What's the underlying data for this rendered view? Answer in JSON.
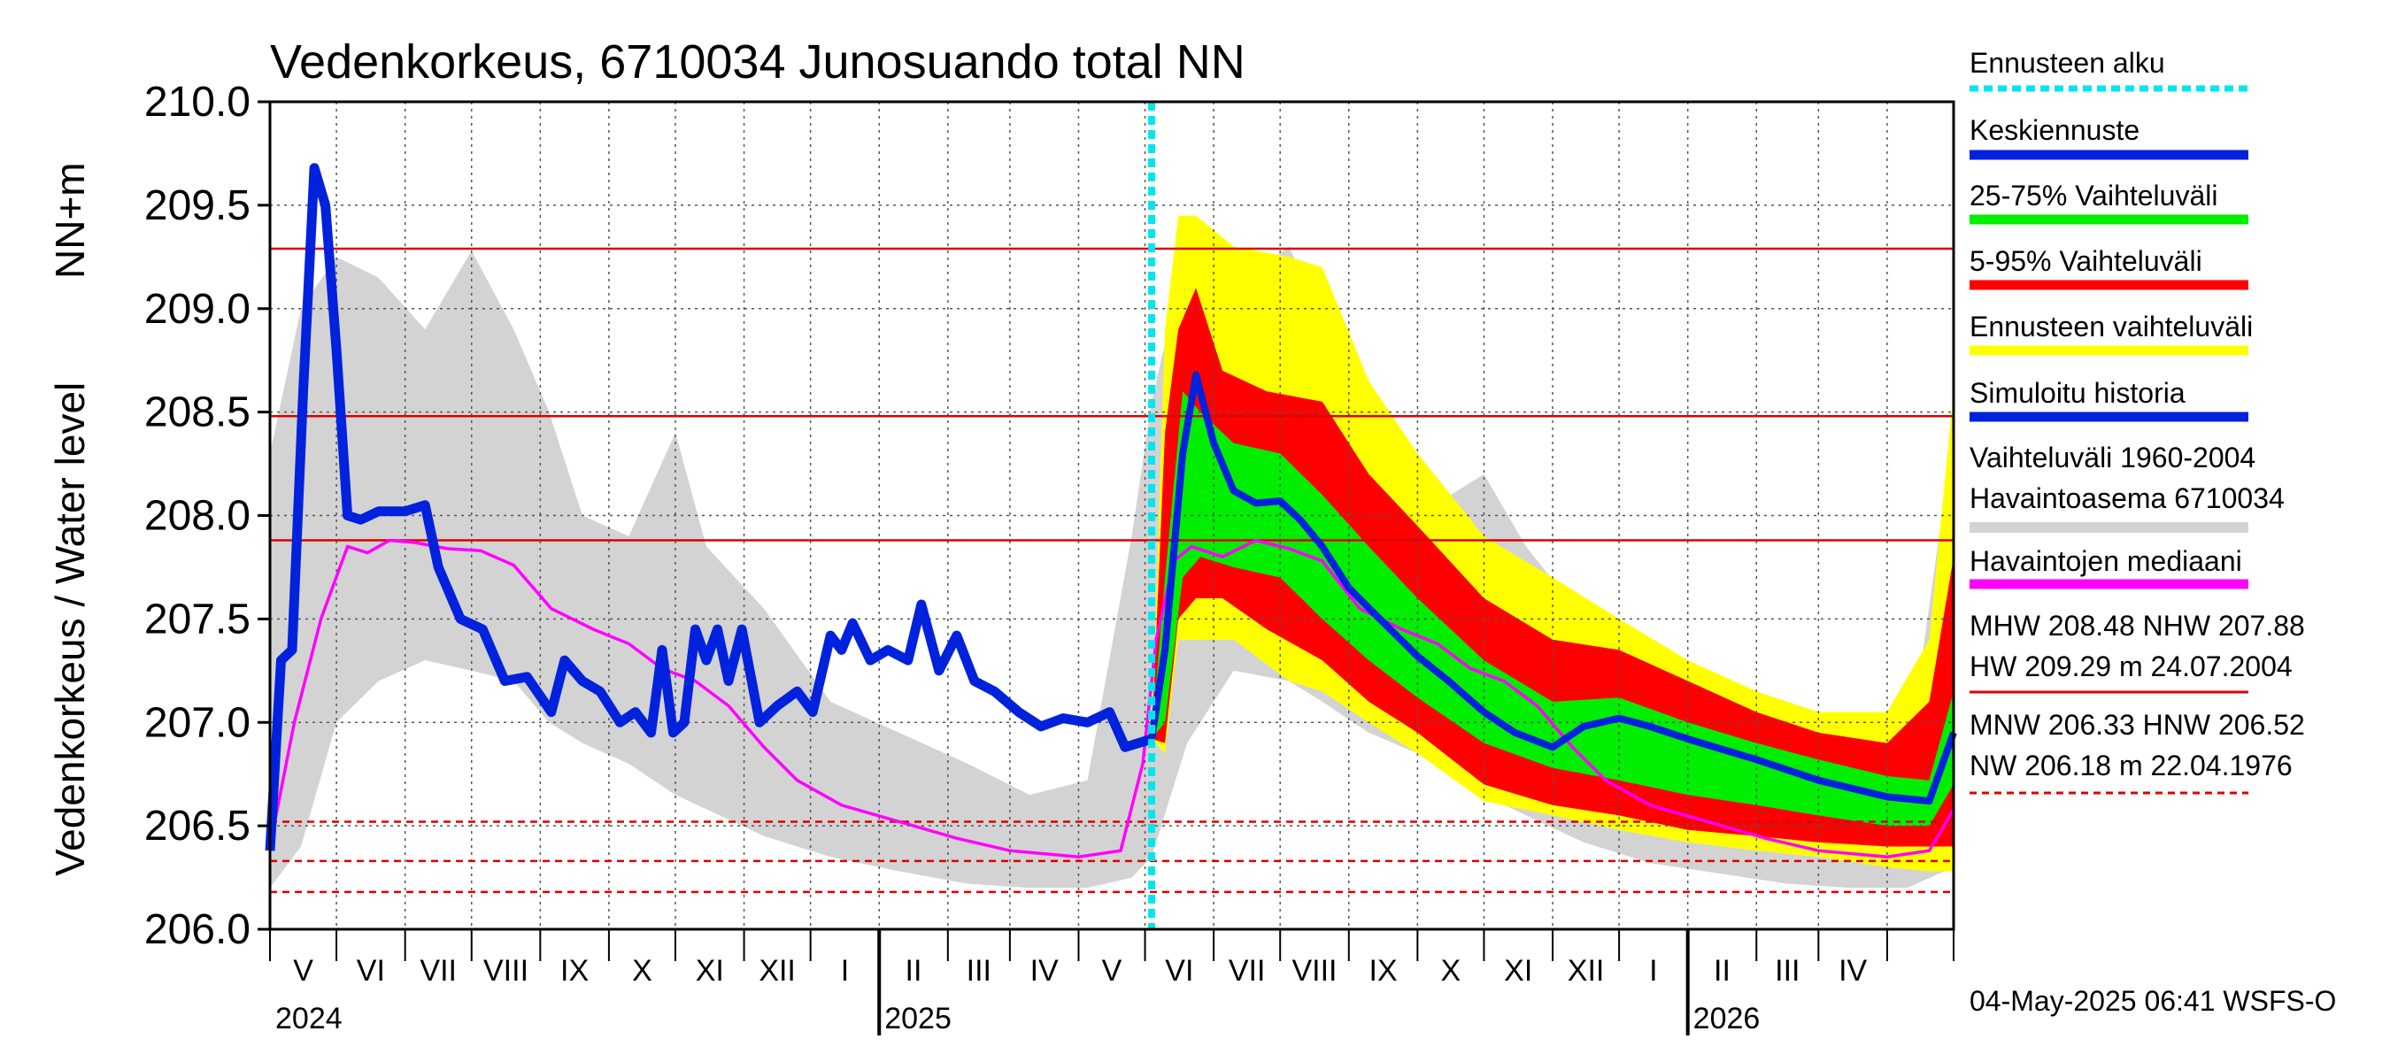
{
  "chart_data": {
    "type": "line",
    "title": "Vedenkorkeus, 6710034 Junosuando total NN",
    "ylabel": "Vedenkorkeus / Water level",
    "yunit": "NN+m",
    "ylim": [
      206.0,
      210.0
    ],
    "yticks": [
      "206.0",
      "206.5",
      "207.0",
      "207.5",
      "208.0",
      "208.5",
      "209.0",
      "209.5",
      "210.0"
    ],
    "xlim": [
      "2024-04-01",
      "2026-05-01"
    ],
    "grid": true,
    "months": [
      "V",
      "VI",
      "VII",
      "VIII",
      "IX",
      "X",
      "XI",
      "XII",
      "I",
      "II",
      "III",
      "IV",
      "V",
      "VI",
      "VII",
      "VIII",
      "IX",
      "X",
      "XI",
      "XII",
      "I",
      "II",
      "III",
      "IV"
    ],
    "years": [
      "2024",
      "2025",
      "2026"
    ],
    "forecast_start": "2025-05-04",
    "colors": {
      "forecast_start": "#00e5ee",
      "mean_forecast": "#0022dd",
      "p25_75": "#00ee00",
      "p5_95": "#ff0000",
      "forecast_range": "#ffff00",
      "simulated_history": "#0022dd",
      "historical_range": "#d3d3d3",
      "median": "#ff00ff",
      "reference": "#dd0000"
    },
    "reference_lines": [
      {
        "label": "HW",
        "value": 209.29,
        "style": "solid"
      },
      {
        "label": "MHW",
        "value": 208.48,
        "style": "solid"
      },
      {
        "label": "NHW",
        "value": 207.88,
        "style": "solid"
      },
      {
        "label": "HNW",
        "value": 206.52,
        "style": "dashed"
      },
      {
        "label": "MNW",
        "value": 206.33,
        "style": "dashed"
      },
      {
        "label": "NW",
        "value": 206.18,
        "style": "dashed"
      }
    ],
    "simulated_history": [
      [
        "2024-04-01",
        206.38
      ],
      [
        "2024-04-06",
        207.3
      ],
      [
        "2024-04-11",
        207.35
      ],
      [
        "2024-04-16",
        208.6
      ],
      [
        "2024-04-21",
        209.68
      ],
      [
        "2024-04-26",
        209.5
      ],
      [
        "2024-05-01",
        208.8
      ],
      [
        "2024-05-06",
        208.0
      ],
      [
        "2024-05-12",
        207.98
      ],
      [
        "2024-05-20",
        208.02
      ],
      [
        "2024-06-01",
        208.02
      ],
      [
        "2024-06-10",
        208.05
      ],
      [
        "2024-06-16",
        207.75
      ],
      [
        "2024-06-26",
        207.5
      ],
      [
        "2024-07-06",
        207.45
      ],
      [
        "2024-07-16",
        207.2
      ],
      [
        "2024-07-26",
        207.22
      ],
      [
        "2024-08-06",
        207.05
      ],
      [
        "2024-08-12",
        207.3
      ],
      [
        "2024-08-20",
        207.2
      ],
      [
        "2024-08-28",
        207.15
      ],
      [
        "2024-09-06",
        207.0
      ],
      [
        "2024-09-13",
        207.05
      ],
      [
        "2024-09-20",
        206.95
      ],
      [
        "2024-09-25",
        207.35
      ],
      [
        "2024-09-30",
        206.95
      ],
      [
        "2024-10-05",
        207.0
      ],
      [
        "2024-10-10",
        207.45
      ],
      [
        "2024-10-15",
        207.3
      ],
      [
        "2024-10-20",
        207.45
      ],
      [
        "2024-10-25",
        207.2
      ],
      [
        "2024-10-31",
        207.45
      ],
      [
        "2024-11-08",
        207.0
      ],
      [
        "2024-11-16",
        207.08
      ],
      [
        "2024-11-25",
        207.15
      ],
      [
        "2024-12-02",
        207.05
      ],
      [
        "2024-12-10",
        207.42
      ],
      [
        "2024-12-15",
        207.35
      ],
      [
        "2024-12-20",
        207.48
      ],
      [
        "2024-12-28",
        207.3
      ],
      [
        "2025-01-05",
        207.35
      ],
      [
        "2025-01-14",
        207.3
      ],
      [
        "2025-01-20",
        207.57
      ],
      [
        "2025-01-28",
        207.25
      ],
      [
        "2025-02-05",
        207.42
      ],
      [
        "2025-02-13",
        207.2
      ],
      [
        "2025-02-22",
        207.15
      ],
      [
        "2025-03-05",
        207.05
      ],
      [
        "2025-03-15",
        206.98
      ],
      [
        "2025-03-25",
        207.02
      ],
      [
        "2025-04-05",
        207.0
      ],
      [
        "2025-04-15",
        207.05
      ],
      [
        "2025-04-22",
        206.88
      ],
      [
        "2025-05-04",
        206.92
      ]
    ],
    "median": [
      [
        "2024-04-01",
        206.4
      ],
      [
        "2024-04-12",
        207.0
      ],
      [
        "2024-04-24",
        207.5
      ],
      [
        "2024-05-06",
        207.85
      ],
      [
        "2024-05-15",
        207.82
      ],
      [
        "2024-05-25",
        207.88
      ],
      [
        "2024-06-05",
        207.87
      ],
      [
        "2024-06-20",
        207.84
      ],
      [
        "2024-07-05",
        207.83
      ],
      [
        "2024-07-20",
        207.76
      ],
      [
        "2024-08-06",
        207.55
      ],
      [
        "2024-08-25",
        207.45
      ],
      [
        "2024-09-10",
        207.38
      ],
      [
        "2024-09-25",
        207.26
      ],
      [
        "2024-10-10",
        207.2
      ],
      [
        "2024-10-25",
        207.08
      ],
      [
        "2024-11-10",
        206.88
      ],
      [
        "2024-11-25",
        206.72
      ],
      [
        "2024-12-15",
        206.6
      ],
      [
        "2025-01-10",
        206.52
      ],
      [
        "2025-02-05",
        206.44
      ],
      [
        "2025-03-01",
        206.38
      ],
      [
        "2025-04-01",
        206.35
      ],
      [
        "2025-04-20",
        206.38
      ],
      [
        "2025-04-30",
        206.8
      ],
      [
        "2025-05-06",
        207.4
      ],
      [
        "2025-05-14",
        207.78
      ],
      [
        "2025-05-22",
        207.85
      ],
      [
        "2025-06-05",
        207.8
      ],
      [
        "2025-06-20",
        207.88
      ],
      [
        "2025-07-05",
        207.84
      ],
      [
        "2025-07-20",
        207.78
      ],
      [
        "2025-08-06",
        207.55
      ],
      [
        "2025-08-25",
        207.45
      ],
      [
        "2025-09-10",
        207.38
      ],
      [
        "2025-09-25",
        207.26
      ],
      [
        "2025-10-10",
        207.2
      ],
      [
        "2025-10-25",
        207.08
      ],
      [
        "2025-11-10",
        206.88
      ],
      [
        "2025-11-25",
        206.72
      ],
      [
        "2025-12-15",
        206.6
      ],
      [
        "2026-01-10",
        206.52
      ],
      [
        "2026-02-05",
        206.44
      ],
      [
        "2026-03-01",
        206.38
      ],
      [
        "2026-04-01",
        206.35
      ],
      [
        "2026-04-20",
        206.38
      ],
      [
        "2026-05-01",
        206.58
      ]
    ],
    "mean_forecast": [
      [
        "2025-05-04",
        206.92
      ],
      [
        "2025-05-10",
        207.35
      ],
      [
        "2025-05-18",
        208.3
      ],
      [
        "2025-05-24",
        208.68
      ],
      [
        "2025-06-01",
        208.35
      ],
      [
        "2025-06-10",
        208.12
      ],
      [
        "2025-06-20",
        208.06
      ],
      [
        "2025-07-01",
        208.07
      ],
      [
        "2025-07-10",
        207.98
      ],
      [
        "2025-07-20",
        207.85
      ],
      [
        "2025-08-01",
        207.65
      ],
      [
        "2025-08-15",
        207.5
      ],
      [
        "2025-09-01",
        207.32
      ],
      [
        "2025-09-15",
        207.2
      ],
      [
        "2025-10-01",
        207.05
      ],
      [
        "2025-10-15",
        206.95
      ],
      [
        "2025-11-01",
        206.88
      ],
      [
        "2025-11-15",
        206.98
      ],
      [
        "2025-12-01",
        207.02
      ],
      [
        "2025-12-15",
        206.98
      ],
      [
        "2026-01-01",
        206.92
      ],
      [
        "2026-02-01",
        206.82
      ],
      [
        "2026-03-01",
        206.72
      ],
      [
        "2026-04-01",
        206.64
      ],
      [
        "2026-04-20",
        206.62
      ],
      [
        "2026-05-01",
        206.95
      ]
    ],
    "p25_75": [
      [
        "2025-05-04",
        206.92,
        206.92
      ],
      [
        "2025-05-10",
        207.0,
        207.7
      ],
      [
        "2025-05-18",
        207.7,
        208.6
      ],
      [
        "2025-05-26",
        207.8,
        208.5
      ],
      [
        "2025-06-10",
        207.75,
        208.35
      ],
      [
        "2025-07-01",
        207.7,
        208.3
      ],
      [
        "2025-07-20",
        207.5,
        208.1
      ],
      [
        "2025-08-10",
        207.3,
        207.85
      ],
      [
        "2025-09-01",
        207.12,
        207.6
      ],
      [
        "2025-10-01",
        206.9,
        207.3
      ],
      [
        "2025-11-01",
        206.78,
        207.1
      ],
      [
        "2025-12-01",
        206.72,
        207.12
      ],
      [
        "2026-01-01",
        206.65,
        207.0
      ],
      [
        "2026-02-01",
        206.6,
        206.9
      ],
      [
        "2026-03-01",
        206.55,
        206.82
      ],
      [
        "2026-04-01",
        206.5,
        206.74
      ],
      [
        "2026-04-20",
        206.5,
        206.72
      ],
      [
        "2026-05-01",
        206.7,
        207.15
      ]
    ],
    "p5_95": [
      [
        "2025-05-04",
        206.92,
        206.92
      ],
      [
        "2025-05-10",
        206.9,
        208.4
      ],
      [
        "2025-05-16",
        207.5,
        208.9
      ],
      [
        "2025-05-24",
        207.6,
        209.1
      ],
      [
        "2025-06-05",
        207.6,
        208.7
      ],
      [
        "2025-06-25",
        207.45,
        208.6
      ],
      [
        "2025-07-20",
        207.3,
        208.55
      ],
      [
        "2025-08-10",
        207.1,
        208.2
      ],
      [
        "2025-09-01",
        206.95,
        207.95
      ],
      [
        "2025-10-01",
        206.7,
        207.6
      ],
      [
        "2025-11-01",
        206.6,
        207.4
      ],
      [
        "2025-12-01",
        206.55,
        207.35
      ],
      [
        "2026-01-01",
        206.48,
        207.2
      ],
      [
        "2026-02-01",
        206.45,
        207.05
      ],
      [
        "2026-03-01",
        206.42,
        206.95
      ],
      [
        "2026-04-01",
        206.4,
        206.9
      ],
      [
        "2026-04-20",
        206.4,
        207.1
      ],
      [
        "2026-05-01",
        206.4,
        207.8
      ]
    ],
    "forecast_range": [
      [
        "2025-05-04",
        206.92,
        206.92
      ],
      [
        "2025-05-10",
        206.85,
        208.9
      ],
      [
        "2025-05-16",
        207.4,
        209.45
      ],
      [
        "2025-05-24",
        207.4,
        209.45
      ],
      [
        "2025-06-10",
        207.4,
        209.3
      ],
      [
        "2025-07-05",
        207.2,
        209.25
      ],
      [
        "2025-07-20",
        207.15,
        209.2
      ],
      [
        "2025-08-10",
        207.0,
        208.65
      ],
      [
        "2025-09-01",
        206.85,
        208.3
      ],
      [
        "2025-10-01",
        206.62,
        207.9
      ],
      [
        "2025-11-01",
        206.55,
        207.7
      ],
      [
        "2025-12-01",
        206.48,
        207.5
      ],
      [
        "2026-01-01",
        206.42,
        207.3
      ],
      [
        "2026-02-01",
        206.38,
        207.15
      ],
      [
        "2026-03-01",
        206.35,
        207.05
      ],
      [
        "2026-04-01",
        206.3,
        207.05
      ],
      [
        "2026-04-20",
        206.28,
        207.4
      ],
      [
        "2026-05-01",
        206.28,
        208.6
      ]
    ],
    "historical_range": [
      [
        "2024-04-01",
        206.2,
        208.3
      ],
      [
        "2024-04-15",
        206.4,
        209.0
      ],
      [
        "2024-05-01",
        207.0,
        209.25
      ],
      [
        "2024-05-20",
        207.2,
        209.15
      ],
      [
        "2024-06-10",
        207.3,
        208.9
      ],
      [
        "2024-07-01",
        207.25,
        209.28
      ],
      [
        "2024-07-20",
        207.2,
        208.9
      ],
      [
        "2024-08-05",
        207.0,
        208.5
      ],
      [
        "2024-08-20",
        206.9,
        208.0
      ],
      [
        "2024-09-10",
        206.8,
        207.9
      ],
      [
        "2024-10-01",
        206.65,
        208.4
      ],
      [
        "2024-10-15",
        206.58,
        207.85
      ],
      [
        "2024-11-10",
        206.45,
        207.55
      ],
      [
        "2024-12-10",
        206.35,
        207.1
      ],
      [
        "2025-01-10",
        206.28,
        206.95
      ],
      [
        "2025-02-10",
        206.22,
        206.8
      ],
      [
        "2025-03-10",
        206.2,
        206.65
      ],
      [
        "2025-04-05",
        206.2,
        206.72
      ],
      [
        "2025-04-25",
        206.25,
        207.9
      ],
      [
        "2025-05-04",
        206.35,
        208.55
      ],
      [
        "2025-05-20",
        206.9,
        209.3
      ],
      [
        "2025-06-10",
        207.25,
        209.1
      ],
      [
        "2025-07-05",
        207.2,
        209.3
      ],
      [
        "2025-07-20",
        207.1,
        208.95
      ],
      [
        "2025-08-10",
        206.95,
        208.5
      ],
      [
        "2025-09-01",
        206.85,
        208.0
      ],
      [
        "2025-10-01",
        206.65,
        208.2
      ],
      [
        "2025-10-20",
        206.55,
        207.85
      ],
      [
        "2025-11-15",
        206.42,
        207.5
      ],
      [
        "2025-12-15",
        206.32,
        207.05
      ],
      [
        "2026-01-15",
        206.27,
        206.9
      ],
      [
        "2026-02-15",
        206.22,
        206.78
      ],
      [
        "2026-03-15",
        206.2,
        206.65
      ],
      [
        "2026-04-10",
        206.2,
        206.8
      ],
      [
        "2026-05-01",
        206.3,
        208.4
      ]
    ],
    "legend": [
      {
        "label": "Ennusteen alku",
        "color": "#00e5ee",
        "style": "dotted"
      },
      {
        "label": "Keskiennuste",
        "color": "#0022dd",
        "style": "solid"
      },
      {
        "label": "25-75% Vaihteluväli",
        "color": "#00ee00",
        "style": "solid"
      },
      {
        "label": "5-95% Vaihteluväli",
        "color": "#ff0000",
        "style": "solid"
      },
      {
        "label": "Ennusteen vaihteluväli",
        "color": "#ffff00",
        "style": "solid"
      },
      {
        "label": "Simuloitu historia",
        "color": "#0022dd",
        "style": "solid"
      },
      {
        "label": "Vaihteluväli 1960-2004",
        "label2": " Havaintoasema 6710034",
        "color": "#d3d3d3",
        "style": "solid"
      },
      {
        "label": "Havaintojen mediaani",
        "color": "#ff00ff",
        "style": "solid"
      }
    ],
    "stats": {
      "line1": "MHW 208.48 NHW 207.88",
      "line2": "HW 209.29 m 24.07.2004",
      "line3": "MNW 206.33 HNW 206.52",
      "line4": "NW 206.18 m 22.04.1976"
    },
    "footer": "04-May-2025 06:41 WSFS-O"
  }
}
